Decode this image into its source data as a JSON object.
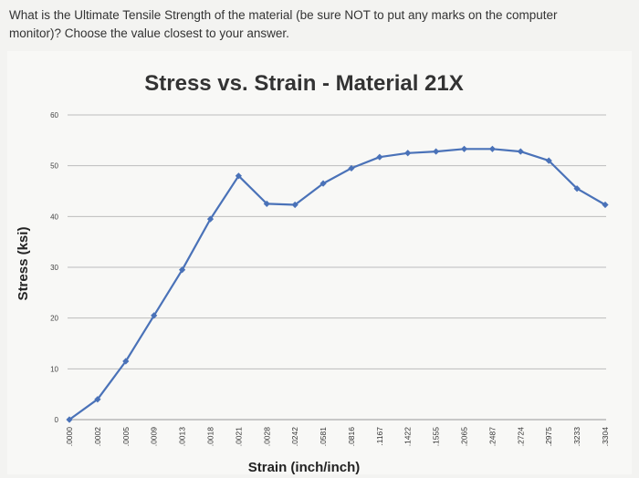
{
  "question": {
    "text": "What is the Ultimate Tensile Strength of the material (be sure NOT to put any marks on the computer monitor)? Choose the value closest to your answer."
  },
  "colors": {
    "series": "#4a72b8",
    "grid": "#bdbdbd",
    "axis": "#999999"
  },
  "chart_data": {
    "type": "line",
    "title": "Stress vs. Strain - Material 21X",
    "xlabel": "Strain (inch/inch)",
    "ylabel": "Stress (ksi)",
    "ylim": [
      0,
      60
    ],
    "yticks": [
      0,
      10,
      20,
      30,
      40,
      50,
      60
    ],
    "grid": true,
    "legend": "none",
    "categories": [
      ".0000",
      ".0002",
      ".0005",
      ".0009",
      ".0013",
      ".0018",
      ".0021",
      ".0028",
      ".0242",
      ".0581",
      ".0816",
      ".1167",
      ".1422",
      ".1555",
      ".2065",
      ".2487",
      ".2724",
      ".2975",
      ".3233",
      ".3304"
    ],
    "series": [
      {
        "values": [
          0,
          4,
          11.5,
          20.5,
          29.5,
          39.5,
          48,
          42.5,
          42.3,
          46.5,
          49.5,
          51.7,
          52.5,
          52.8,
          53.3,
          53.3,
          52.8,
          51,
          45.5,
          42.3
        ]
      }
    ]
  }
}
